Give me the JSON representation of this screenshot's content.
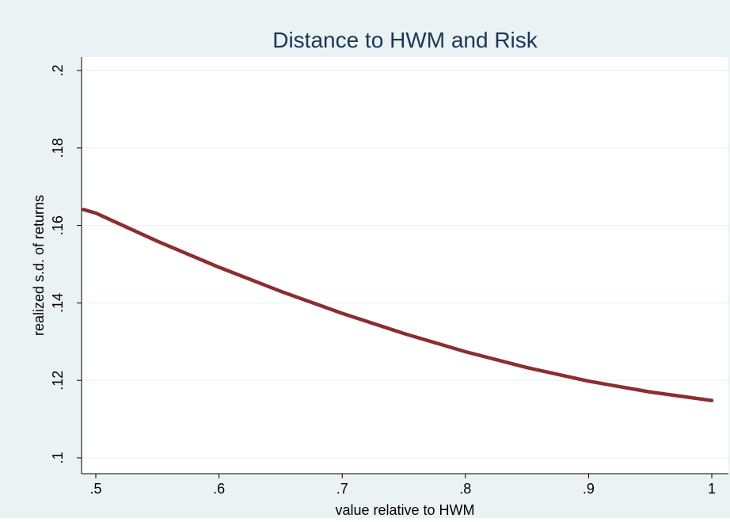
{
  "chart_data": {
    "type": "line",
    "title": "Distance to HWM and Risk",
    "xlabel": "value relative to HWM",
    "ylabel": "realized s.d. of returns",
    "xlim": [
      0.49,
      1.0
    ],
    "ylim": [
      0.1,
      0.2
    ],
    "xticks": [
      ".5",
      ".6",
      ".7",
      ".8",
      ".9",
      "1"
    ],
    "xtick_values": [
      0.5,
      0.6,
      0.7,
      0.8,
      0.9,
      1.0
    ],
    "yticks": [
      ".1",
      ".12",
      ".14",
      ".16",
      ".18",
      ".2"
    ],
    "ytick_values": [
      0.1,
      0.12,
      0.14,
      0.16,
      0.18,
      0.2
    ],
    "grid": true,
    "series": [
      {
        "color": "#8b2e31",
        "x": [
          0.49,
          0.5,
          0.55,
          0.6,
          0.65,
          0.7,
          0.75,
          0.8,
          0.85,
          0.9,
          0.95,
          1.0
        ],
        "y": [
          0.1641,
          0.1632,
          0.1559,
          0.1492,
          0.143,
          0.1373,
          0.1321,
          0.1274,
          0.1233,
          0.1198,
          0.117,
          0.1148
        ]
      }
    ],
    "colors": {
      "outer_bg": "#eaf2f3",
      "plot_bg": "#ffffff",
      "grid": "#eaf2f3",
      "title": "#1b3656",
      "axis": "#000000"
    }
  }
}
